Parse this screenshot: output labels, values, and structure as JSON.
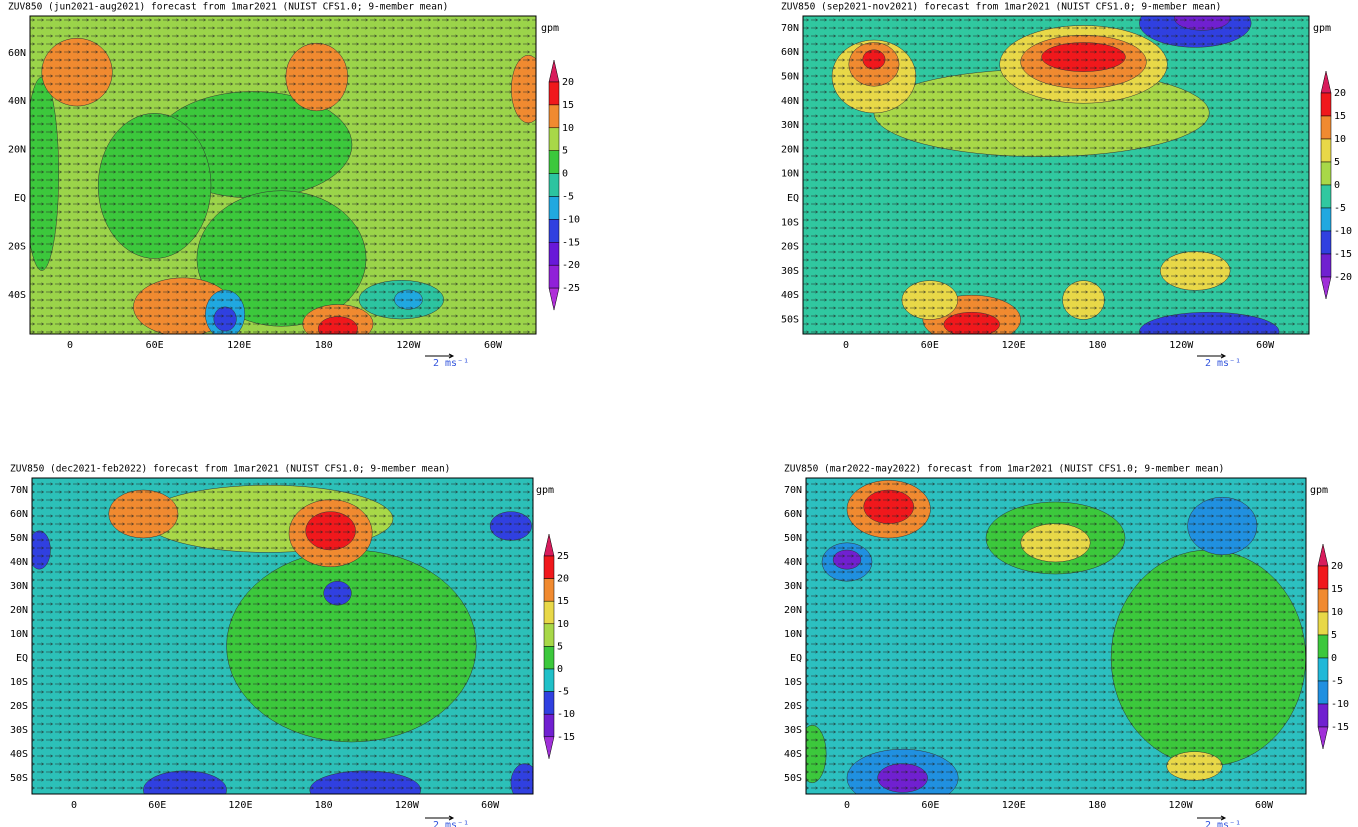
{
  "panels": [
    {
      "title": "ZUV850 (jun2021-aug2021) forecast from 1mar2021 (NUIST CFS1.0; 9-member mean)",
      "unit": "gpm",
      "lat_labels": [
        "60N",
        "40N",
        "20N",
        "EQ",
        "20S",
        "40S"
      ],
      "lon_labels": [
        "0",
        "60E",
        "120E",
        "180",
        "120W",
        "60W"
      ],
      "colorbar": {
        "levels": [
          20,
          15,
          10,
          5,
          0,
          -5,
          -10,
          -15,
          -20,
          -25
        ],
        "colors": [
          "#d81c5c",
          "#f0181c",
          "#f08a30",
          "#a8d848",
          "#3cc83c",
          "#2cc4a0",
          "#20a8e0",
          "#3040e0",
          "#6818d8",
          "#9020d8",
          "#b030d8"
        ]
      },
      "vector_label": "2 ms⁻¹"
    },
    {
      "title": "ZUV850 (sep2021-nov2021) forecast from 1mar2021 (NUIST CFS1.0; 9-member mean)",
      "unit": "gpm",
      "lat_labels": [
        "70N",
        "60N",
        "50N",
        "40N",
        "30N",
        "20N",
        "10N",
        "EQ",
        "10S",
        "20S",
        "30S",
        "40S",
        "50S"
      ],
      "lon_labels": [
        "0",
        "60E",
        "120E",
        "180",
        "120W",
        "60W"
      ],
      "colorbar": {
        "levels": [
          20,
          15,
          10,
          5,
          0,
          -5,
          -10,
          -15,
          -20
        ],
        "colors": [
          "#d81c5c",
          "#f0181c",
          "#f08a30",
          "#e8d848",
          "#a8d848",
          "#30c8a0",
          "#20a8e0",
          "#3040e0",
          "#7020d0",
          "#a030d8"
        ]
      },
      "vector_label": "2 ms⁻¹"
    },
    {
      "title": "ZUV850 (dec2021-feb2022) forecast from 1mar2021 (NUIST CFS1.0; 9-member mean)",
      "unit": "gpm",
      "lat_labels": [
        "70N",
        "60N",
        "50N",
        "40N",
        "30N",
        "20N",
        "10N",
        "EQ",
        "10S",
        "20S",
        "30S",
        "40S",
        "50S"
      ],
      "lon_labels": [
        "0",
        "60E",
        "120E",
        "180",
        "120W",
        "60W"
      ],
      "colorbar": {
        "levels": [
          25,
          20,
          15,
          10,
          5,
          0,
          -5,
          -10,
          -15
        ],
        "colors": [
          "#d81c5c",
          "#f0181c",
          "#f08a30",
          "#e8d848",
          "#a8d848",
          "#3cc83c",
          "#20c0c8",
          "#3040e0",
          "#7020d0",
          "#a030d8"
        ]
      },
      "vector_label": "2 ms⁻¹"
    },
    {
      "title": "ZUV850 (mar2022-may2022) forecast from 1mar2021 (NUIST CFS1.0; 9-member mean)",
      "unit": "gpm",
      "lat_labels": [
        "70N",
        "60N",
        "50N",
        "40N",
        "30N",
        "20N",
        "10N",
        "EQ",
        "10S",
        "20S",
        "30S",
        "40S",
        "50S"
      ],
      "lon_labels": [
        "0",
        "60E",
        "120E",
        "180",
        "120W",
        "60W"
      ],
      "colorbar": {
        "levels": [
          20,
          15,
          10,
          5,
          0,
          -5,
          -10,
          -15
        ],
        "colors": [
          "#d81c5c",
          "#f0181c",
          "#f08a30",
          "#e8d848",
          "#3cc83c",
          "#20b8d8",
          "#2090e0",
          "#7020d0",
          "#a030d8"
        ]
      },
      "vector_label": "2 ms⁻¹"
    }
  ]
}
